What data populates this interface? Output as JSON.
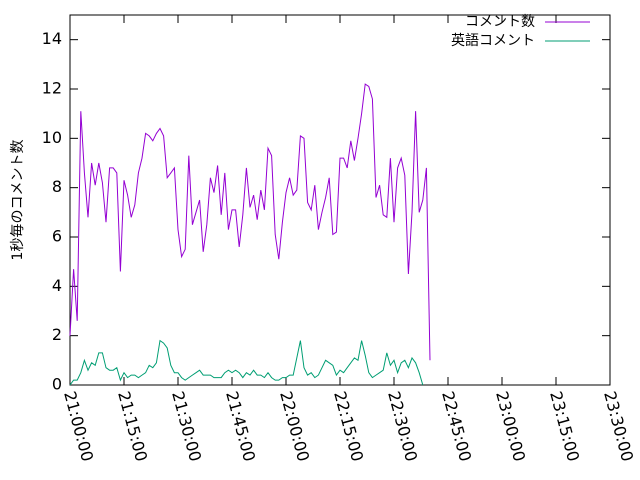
{
  "chart_data": {
    "type": "line",
    "ylabel": "1秒毎のコメント数",
    "xlabel": "",
    "title": "",
    "ylim": [
      0,
      15
    ],
    "yticks": [
      "0",
      "2",
      "4",
      "6",
      "8",
      "10",
      "12",
      "14"
    ],
    "xlim": [
      "21:00:00",
      "23:30:00"
    ],
    "xticks": [
      "21:00:00",
      "21:15:00",
      "21:30:00",
      "21:45:00",
      "22:00:00",
      "22:15:00",
      "22:30:00",
      "22:45:00",
      "23:00:00",
      "23:15:00",
      "23:30:00"
    ],
    "grid": false,
    "legend_position": "top-right",
    "series": [
      {
        "name": "コメント数",
        "color": "#9400d3",
        "points": [
          [
            "21:00:00",
            2.0
          ],
          [
            "21:01:00",
            4.7
          ],
          [
            "21:02:00",
            2.6
          ],
          [
            "21:03:00",
            11.1
          ],
          [
            "21:04:00",
            8.6
          ],
          [
            "21:05:00",
            6.8
          ],
          [
            "21:06:00",
            9.0
          ],
          [
            "21:07:00",
            8.1
          ],
          [
            "21:08:00",
            9.0
          ],
          [
            "21:09:00",
            8.2
          ],
          [
            "21:10:00",
            6.6
          ],
          [
            "21:11:00",
            8.8
          ],
          [
            "21:12:00",
            8.8
          ],
          [
            "21:13:00",
            8.6
          ],
          [
            "21:14:00",
            4.6
          ],
          [
            "21:15:00",
            8.3
          ],
          [
            "21:16:00",
            7.7
          ],
          [
            "21:17:00",
            6.8
          ],
          [
            "21:18:00",
            7.3
          ],
          [
            "21:19:00",
            8.6
          ],
          [
            "21:20:00",
            9.2
          ],
          [
            "21:21:00",
            10.2
          ],
          [
            "21:22:00",
            10.1
          ],
          [
            "21:23:00",
            9.9
          ],
          [
            "21:24:00",
            10.2
          ],
          [
            "21:25:00",
            10.4
          ],
          [
            "21:26:00",
            10.1
          ],
          [
            "21:27:00",
            8.4
          ],
          [
            "21:28:00",
            8.6
          ],
          [
            "21:29:00",
            8.8
          ],
          [
            "21:30:00",
            6.3
          ],
          [
            "21:31:00",
            5.2
          ],
          [
            "21:32:00",
            5.5
          ],
          [
            "21:33:00",
            9.3
          ],
          [
            "21:34:00",
            6.5
          ],
          [
            "21:35:00",
            7.0
          ],
          [
            "21:36:00",
            7.5
          ],
          [
            "21:37:00",
            5.4
          ],
          [
            "21:38:00",
            6.5
          ],
          [
            "21:39:00",
            8.4
          ],
          [
            "21:40:00",
            7.8
          ],
          [
            "21:41:00",
            8.9
          ],
          [
            "21:42:00",
            6.9
          ],
          [
            "21:43:00",
            8.6
          ],
          [
            "21:44:00",
            6.3
          ],
          [
            "21:45:00",
            7.1
          ],
          [
            "21:46:00",
            7.1
          ],
          [
            "21:47:00",
            5.6
          ],
          [
            "21:48:00",
            6.9
          ],
          [
            "21:49:00",
            8.8
          ],
          [
            "21:50:00",
            7.2
          ],
          [
            "21:51:00",
            7.7
          ],
          [
            "21:52:00",
            6.7
          ],
          [
            "21:53:00",
            7.9
          ],
          [
            "21:54:00",
            7.1
          ],
          [
            "21:55:00",
            9.6
          ],
          [
            "21:56:00",
            9.3
          ],
          [
            "21:57:00",
            6.1
          ],
          [
            "21:58:00",
            5.1
          ],
          [
            "21:59:00",
            6.6
          ],
          [
            "22:00:00",
            7.8
          ],
          [
            "22:01:00",
            8.4
          ],
          [
            "22:02:00",
            7.7
          ],
          [
            "22:03:00",
            7.9
          ],
          [
            "22:04:00",
            10.1
          ],
          [
            "22:05:00",
            10.0
          ],
          [
            "22:06:00",
            7.4
          ],
          [
            "22:07:00",
            7.1
          ],
          [
            "22:08:00",
            8.1
          ],
          [
            "22:09:00",
            6.3
          ],
          [
            "22:10:00",
            7.0
          ],
          [
            "22:11:00",
            7.6
          ],
          [
            "22:12:00",
            8.4
          ],
          [
            "22:13:00",
            6.1
          ],
          [
            "22:14:00",
            6.2
          ],
          [
            "22:15:00",
            9.2
          ],
          [
            "22:16:00",
            9.2
          ],
          [
            "22:17:00",
            8.8
          ],
          [
            "22:18:00",
            9.9
          ],
          [
            "22:19:00",
            9.1
          ],
          [
            "22:20:00",
            10.0
          ],
          [
            "22:21:00",
            11.0
          ],
          [
            "22:22:00",
            12.2
          ],
          [
            "22:23:00",
            12.1
          ],
          [
            "22:24:00",
            11.6
          ],
          [
            "22:25:00",
            7.6
          ],
          [
            "22:26:00",
            8.1
          ],
          [
            "22:27:00",
            6.9
          ],
          [
            "22:28:00",
            6.8
          ],
          [
            "22:29:00",
            9.2
          ],
          [
            "22:30:00",
            6.6
          ],
          [
            "22:31:00",
            8.8
          ],
          [
            "22:32:00",
            9.2
          ],
          [
            "22:33:00",
            8.5
          ],
          [
            "22:34:00",
            4.5
          ],
          [
            "22:35:00",
            7.0
          ],
          [
            "22:36:00",
            11.1
          ],
          [
            "22:37:00",
            7.0
          ],
          [
            "22:38:00",
            7.5
          ],
          [
            "22:39:00",
            8.8
          ],
          [
            "22:40:00",
            1.0
          ]
        ]
      },
      {
        "name": "英語コメント",
        "color": "#009e73",
        "points": [
          [
            "21:00:00",
            0.0
          ],
          [
            "21:01:00",
            0.2
          ],
          [
            "21:02:00",
            0.2
          ],
          [
            "21:03:00",
            0.5
          ],
          [
            "21:04:00",
            1.0
          ],
          [
            "21:05:00",
            0.6
          ],
          [
            "21:06:00",
            0.9
          ],
          [
            "21:07:00",
            0.8
          ],
          [
            "21:08:00",
            1.3
          ],
          [
            "21:09:00",
            1.3
          ],
          [
            "21:10:00",
            0.7
          ],
          [
            "21:11:00",
            0.6
          ],
          [
            "21:12:00",
            0.6
          ],
          [
            "21:13:00",
            0.7
          ],
          [
            "21:14:00",
            0.2
          ],
          [
            "21:15:00",
            0.5
          ],
          [
            "21:16:00",
            0.3
          ],
          [
            "21:17:00",
            0.4
          ],
          [
            "21:18:00",
            0.4
          ],
          [
            "21:19:00",
            0.3
          ],
          [
            "21:20:00",
            0.4
          ],
          [
            "21:21:00",
            0.5
          ],
          [
            "21:22:00",
            0.8
          ],
          [
            "21:23:00",
            0.7
          ],
          [
            "21:24:00",
            0.9
          ],
          [
            "21:25:00",
            1.8
          ],
          [
            "21:26:00",
            1.7
          ],
          [
            "21:27:00",
            1.5
          ],
          [
            "21:28:00",
            0.8
          ],
          [
            "21:29:00",
            0.5
          ],
          [
            "21:30:00",
            0.5
          ],
          [
            "21:31:00",
            0.3
          ],
          [
            "21:32:00",
            0.2
          ],
          [
            "21:33:00",
            0.3
          ],
          [
            "21:34:00",
            0.4
          ],
          [
            "21:35:00",
            0.5
          ],
          [
            "21:36:00",
            0.6
          ],
          [
            "21:37:00",
            0.4
          ],
          [
            "21:38:00",
            0.4
          ],
          [
            "21:39:00",
            0.4
          ],
          [
            "21:40:00",
            0.3
          ],
          [
            "21:41:00",
            0.3
          ],
          [
            "21:42:00",
            0.3
          ],
          [
            "21:43:00",
            0.5
          ],
          [
            "21:44:00",
            0.6
          ],
          [
            "21:45:00",
            0.5
          ],
          [
            "21:46:00",
            0.6
          ],
          [
            "21:47:00",
            0.5
          ],
          [
            "21:48:00",
            0.3
          ],
          [
            "21:49:00",
            0.5
          ],
          [
            "21:50:00",
            0.4
          ],
          [
            "21:51:00",
            0.6
          ],
          [
            "21:52:00",
            0.4
          ],
          [
            "21:53:00",
            0.4
          ],
          [
            "21:54:00",
            0.3
          ],
          [
            "21:55:00",
            0.5
          ],
          [
            "21:56:00",
            0.3
          ],
          [
            "21:57:00",
            0.2
          ],
          [
            "21:58:00",
            0.2
          ],
          [
            "21:59:00",
            0.3
          ],
          [
            "22:00:00",
            0.3
          ],
          [
            "22:01:00",
            0.4
          ],
          [
            "22:02:00",
            0.4
          ],
          [
            "22:03:00",
            1.1
          ],
          [
            "22:04:00",
            1.8
          ],
          [
            "22:05:00",
            0.7
          ],
          [
            "22:06:00",
            0.4
          ],
          [
            "22:07:00",
            0.5
          ],
          [
            "22:08:00",
            0.3
          ],
          [
            "22:09:00",
            0.4
          ],
          [
            "22:10:00",
            0.7
          ],
          [
            "22:11:00",
            1.0
          ],
          [
            "22:12:00",
            0.9
          ],
          [
            "22:13:00",
            0.8
          ],
          [
            "22:14:00",
            0.4
          ],
          [
            "22:15:00",
            0.6
          ],
          [
            "22:16:00",
            0.5
          ],
          [
            "22:17:00",
            0.7
          ],
          [
            "22:18:00",
            0.9
          ],
          [
            "22:19:00",
            1.1
          ],
          [
            "22:20:00",
            1.0
          ],
          [
            "22:21:00",
            1.8
          ],
          [
            "22:22:00",
            1.2
          ],
          [
            "22:23:00",
            0.5
          ],
          [
            "22:24:00",
            0.3
          ],
          [
            "22:25:00",
            0.4
          ],
          [
            "22:26:00",
            0.5
          ],
          [
            "22:27:00",
            0.6
          ],
          [
            "22:28:00",
            1.3
          ],
          [
            "22:29:00",
            0.8
          ],
          [
            "22:30:00",
            1.0
          ],
          [
            "22:31:00",
            0.5
          ],
          [
            "22:32:00",
            0.9
          ],
          [
            "22:33:00",
            1.0
          ],
          [
            "22:34:00",
            0.7
          ],
          [
            "22:35:00",
            1.1
          ],
          [
            "22:36:00",
            0.9
          ],
          [
            "22:37:00",
            0.5
          ],
          [
            "22:38:00",
            0.0
          ]
        ]
      }
    ]
  }
}
